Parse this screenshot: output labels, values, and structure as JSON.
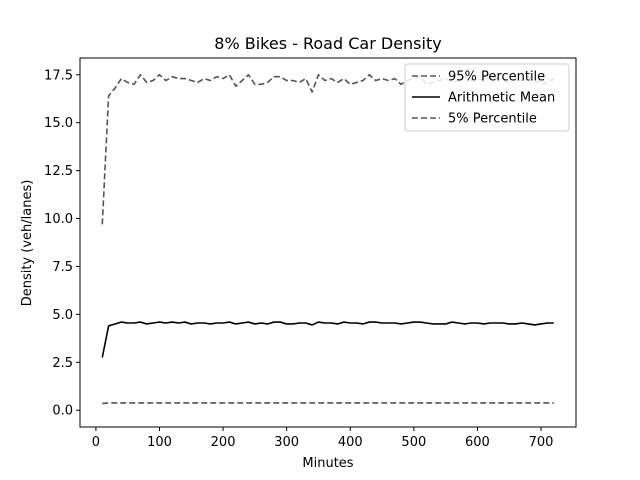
{
  "chart_data": {
    "type": "line",
    "title": "8% Bikes - Road Car Density",
    "xlabel": "Minutes",
    "ylabel": "Density (veh/lanes)",
    "xlim": [
      -25,
      755
    ],
    "ylim": [
      -0.875,
      18.375
    ],
    "xticks": [
      0,
      100,
      200,
      300,
      400,
      500,
      600,
      700
    ],
    "xtick_labels": [
      "0",
      "100",
      "200",
      "300",
      "400",
      "500",
      "600",
      "700"
    ],
    "yticks": [
      0,
      2.5,
      5,
      7.5,
      10,
      12.5,
      15,
      17.5
    ],
    "ytick_labels": [
      "0.0",
      "2.5",
      "5.0",
      "7.5",
      "10.0",
      "12.5",
      "15.0",
      "17.5"
    ],
    "grid": false,
    "legend_position": "top-right",
    "x": [
      10,
      20,
      30,
      40,
      50,
      60,
      70,
      80,
      90,
      100,
      110,
      120,
      130,
      140,
      150,
      160,
      170,
      180,
      190,
      200,
      210,
      220,
      230,
      240,
      250,
      260,
      270,
      280,
      290,
      300,
      310,
      320,
      330,
      340,
      350,
      360,
      370,
      380,
      390,
      400,
      410,
      420,
      430,
      440,
      450,
      460,
      470,
      480,
      490,
      500,
      510,
      520,
      530,
      540,
      550,
      560,
      570,
      580,
      590,
      600,
      610,
      620,
      630,
      640,
      650,
      660,
      670,
      680,
      690,
      700,
      710,
      720
    ],
    "series": [
      {
        "name": "95% Percentile",
        "color": "#555555",
        "dash": "dashed",
        "values": [
          9.7,
          16.4,
          16.8,
          17.3,
          17.1,
          17.0,
          17.5,
          17.1,
          17.2,
          17.5,
          17.2,
          17.4,
          17.3,
          17.3,
          17.2,
          17.1,
          17.3,
          17.2,
          17.4,
          17.3,
          17.5,
          16.9,
          17.2,
          17.5,
          17.0,
          17.0,
          17.1,
          17.4,
          17.4,
          17.2,
          17.2,
          17.1,
          17.3,
          16.6,
          17.5,
          17.2,
          17.3,
          17.1,
          17.3,
          17.0,
          17.1,
          17.2,
          17.5,
          17.2,
          17.3,
          17.2,
          17.3,
          17.0,
          17.2,
          17.3,
          17.4,
          17.0,
          17.1,
          17.2,
          17.3,
          17.1,
          17.2,
          17.4,
          17.2,
          17.3,
          17.2,
          17.4,
          17.3,
          17.2,
          17.1,
          17.3,
          17.2,
          17.4,
          17.1,
          17.2,
          17.0,
          17.3
        ]
      },
      {
        "name": "Arithmetic Mean",
        "color": "#000000",
        "dash": "solid",
        "values": [
          2.75,
          4.4,
          4.5,
          4.6,
          4.55,
          4.55,
          4.6,
          4.5,
          4.55,
          4.6,
          4.55,
          4.6,
          4.55,
          4.6,
          4.5,
          4.55,
          4.55,
          4.5,
          4.55,
          4.55,
          4.6,
          4.5,
          4.55,
          4.6,
          4.5,
          4.55,
          4.5,
          4.6,
          4.6,
          4.5,
          4.5,
          4.55,
          4.55,
          4.45,
          4.6,
          4.55,
          4.55,
          4.5,
          4.6,
          4.55,
          4.55,
          4.5,
          4.6,
          4.6,
          4.55,
          4.55,
          4.55,
          4.5,
          4.55,
          4.6,
          4.6,
          4.55,
          4.5,
          4.5,
          4.5,
          4.6,
          4.55,
          4.5,
          4.55,
          4.55,
          4.5,
          4.55,
          4.55,
          4.55,
          4.5,
          4.5,
          4.55,
          4.5,
          4.45,
          4.5,
          4.55,
          4.55
        ]
      },
      {
        "name": "5% Percentile",
        "color": "#555555",
        "dash": "dashed",
        "values": [
          0.35,
          0.38,
          0.38,
          0.38,
          0.38,
          0.38,
          0.38,
          0.38,
          0.38,
          0.38,
          0.38,
          0.38,
          0.38,
          0.38,
          0.38,
          0.38,
          0.38,
          0.38,
          0.38,
          0.38,
          0.38,
          0.38,
          0.38,
          0.38,
          0.38,
          0.38,
          0.38,
          0.38,
          0.38,
          0.38,
          0.38,
          0.38,
          0.38,
          0.38,
          0.38,
          0.38,
          0.38,
          0.38,
          0.38,
          0.38,
          0.38,
          0.38,
          0.38,
          0.38,
          0.38,
          0.38,
          0.38,
          0.38,
          0.38,
          0.38,
          0.38,
          0.38,
          0.38,
          0.38,
          0.38,
          0.38,
          0.38,
          0.38,
          0.38,
          0.38,
          0.38,
          0.38,
          0.38,
          0.38,
          0.38,
          0.38,
          0.38,
          0.38,
          0.38,
          0.38,
          0.38,
          0.38
        ]
      }
    ]
  }
}
